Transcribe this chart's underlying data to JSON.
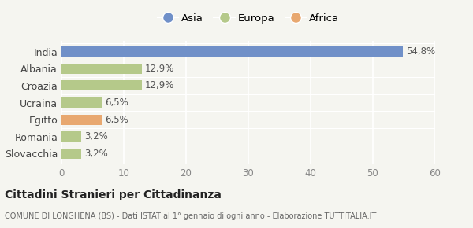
{
  "categories": [
    "India",
    "Albania",
    "Croazia",
    "Ucraina",
    "Egitto",
    "Romania",
    "Slovacchia"
  ],
  "values": [
    54.8,
    12.9,
    12.9,
    6.5,
    6.5,
    3.2,
    3.2
  ],
  "labels": [
    "54,8%",
    "12,9%",
    "12,9%",
    "6,5%",
    "6,5%",
    "3,2%",
    "3,2%"
  ],
  "colors": [
    "#7090c8",
    "#b5c98a",
    "#b5c98a",
    "#b5c98a",
    "#e8a870",
    "#b5c98a",
    "#b5c98a"
  ],
  "legend": [
    {
      "label": "Asia",
      "color": "#7090c8"
    },
    {
      "label": "Europa",
      "color": "#b5c98a"
    },
    {
      "label": "Africa",
      "color": "#e8a870"
    }
  ],
  "xlim": [
    0,
    60
  ],
  "xticks": [
    0,
    10,
    20,
    30,
    40,
    50,
    60
  ],
  "title": "Cittadini Stranieri per Cittadinanza",
  "subtitle": "COMUNE DI LONGHENA (BS) - Dati ISTAT al 1° gennaio di ogni anno - Elaborazione TUTTITALIA.IT",
  "bg_color": "#f5f5f0",
  "grid_color": "#ffffff",
  "bar_height": 0.6
}
